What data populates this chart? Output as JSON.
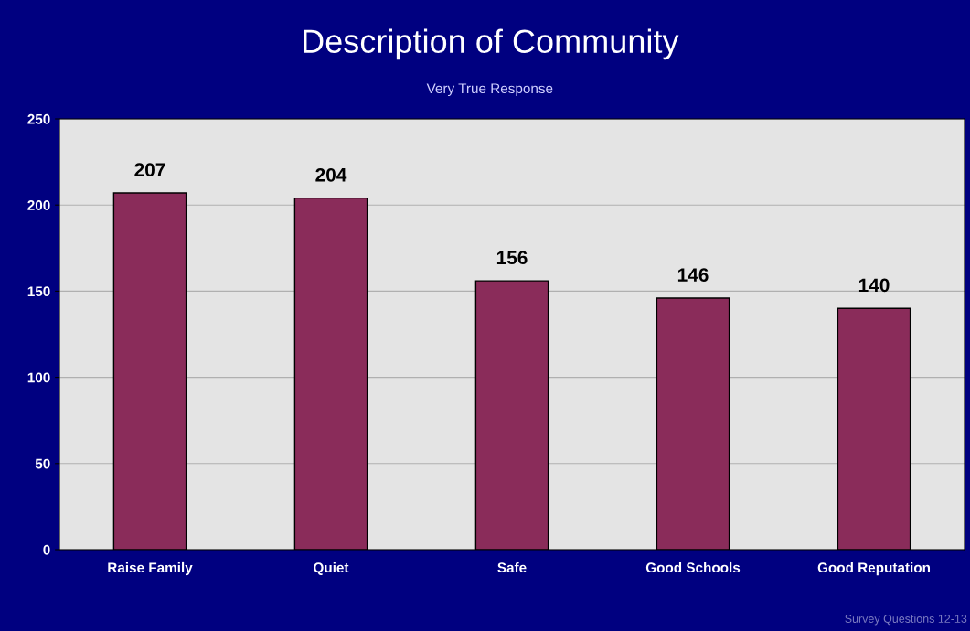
{
  "chart_data": {
    "type": "bar",
    "title": "Description of Community",
    "subtitle": "Very True Response",
    "categories": [
      "Raise Family",
      "Quiet",
      "Safe",
      "Good Schools",
      "Good Reputation"
    ],
    "values": [
      207,
      204,
      156,
      146,
      140
    ],
    "color": "#8a2c5a",
    "ylim": [
      0,
      250
    ],
    "yticks": [
      0,
      50,
      100,
      150,
      200,
      250
    ],
    "grid": "y",
    "data_labels": true,
    "annotations": [
      "Survey Questions 12-13"
    ]
  }
}
